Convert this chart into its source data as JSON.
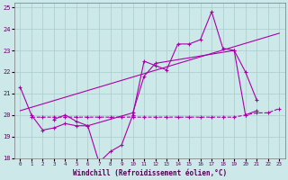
{
  "xlabel": "Windchill (Refroidissement éolien,°C)",
  "background_color": "#cce8e8",
  "grid_color": "#aacccc",
  "line_color": "#aa00aa",
  "xlim": [
    -0.5,
    23.5
  ],
  "ylim": [
    18,
    25.2
  ],
  "yticks": [
    18,
    19,
    20,
    21,
    22,
    23,
    24,
    25
  ],
  "xticks": [
    0,
    1,
    2,
    3,
    4,
    5,
    6,
    7,
    8,
    9,
    10,
    11,
    12,
    13,
    14,
    15,
    16,
    17,
    18,
    19,
    20,
    21,
    22,
    23
  ],
  "series1_x": [
    0,
    1,
    2,
    3,
    4,
    5,
    6,
    7,
    8,
    9,
    10,
    11,
    12,
    13,
    14,
    15,
    16,
    17,
    18,
    19,
    20,
    21
  ],
  "series1_y": [
    21.3,
    20.0,
    19.3,
    19.4,
    19.6,
    19.5,
    19.5,
    17.8,
    18.3,
    18.6,
    20.0,
    22.5,
    22.3,
    22.1,
    23.3,
    23.3,
    23.5,
    24.8,
    23.1,
    23.0,
    20.0,
    20.2
  ],
  "series2_x": [
    1,
    2,
    3,
    4,
    5,
    6,
    7,
    8,
    9,
    10,
    11,
    12,
    13,
    14,
    15,
    16,
    17,
    18,
    19,
    20,
    21,
    22,
    23
  ],
  "series2_y": [
    19.9,
    19.9,
    19.9,
    19.9,
    19.9,
    19.9,
    19.9,
    19.9,
    19.9,
    19.9,
    19.9,
    19.9,
    19.9,
    19.9,
    19.9,
    19.9,
    19.9,
    19.9,
    19.9,
    20.0,
    20.1,
    20.1,
    20.3
  ],
  "series3_x": [
    3,
    4,
    5,
    6,
    10,
    11,
    12,
    19,
    20,
    21
  ],
  "series3_y": [
    19.8,
    20.0,
    19.7,
    19.5,
    20.1,
    21.8,
    22.4,
    23.0,
    22.0,
    20.7
  ],
  "trend_x": [
    0,
    23
  ],
  "trend_y": [
    20.2,
    23.8
  ]
}
